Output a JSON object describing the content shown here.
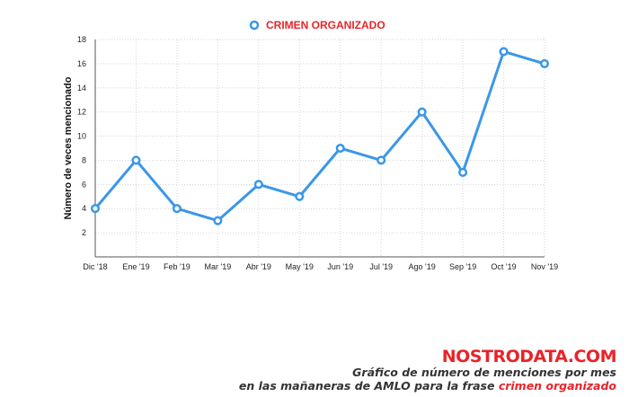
{
  "chart_data": {
    "type": "line",
    "categories": [
      "Dic '18",
      "Ene '19",
      "Feb '19",
      "Mar '19",
      "Abr '19",
      "May '19",
      "Jun '19",
      "Jul '19",
      "Ago '19",
      "Sep '19",
      "Oct '19",
      "Nov '19"
    ],
    "series": [
      {
        "name": "CRIMEN ORGANIZADO",
        "values": [
          4,
          8,
          4,
          3,
          6,
          5,
          9,
          8,
          12,
          7,
          17,
          16
        ]
      }
    ],
    "ylabel": "Número de veces mencionado",
    "xlabel": "",
    "ylim": [
      0,
      18
    ],
    "yticks": [
      2,
      4,
      6,
      8,
      10,
      12,
      14,
      16,
      18
    ],
    "grid": true,
    "legend_position": "top-center",
    "line_color": "#3a97e8"
  },
  "branding": {
    "logo_text": "NOSTRODATA.COM",
    "caption_line1": "Gráfico de número de menciones por mes",
    "caption_line2_prefix": "en las mañaneras de AMLO para la frase ",
    "caption_line2_highlight": "crimen organizado"
  },
  "colors": {
    "accent": "#e8242a",
    "series": "#3a97e8"
  }
}
